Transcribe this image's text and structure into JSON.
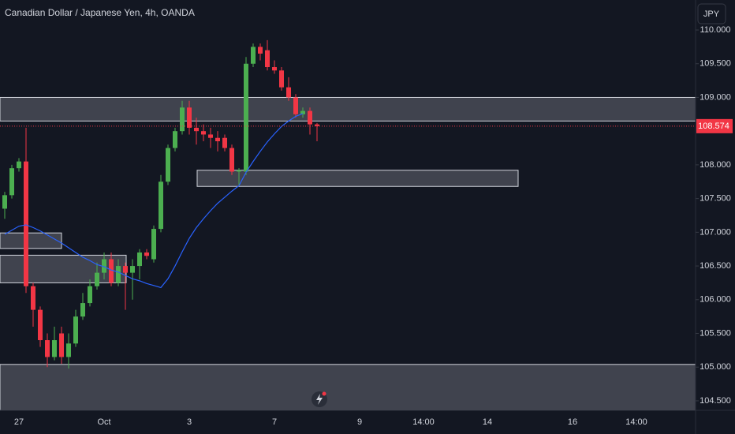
{
  "chart_data": {
    "type": "candlestick",
    "title": "Canadian Dollar / Japanese Yen, 4h, OANDA",
    "currency": "JPY",
    "categories": [
      null,
      null,
      "27",
      null,
      null,
      null,
      null,
      null,
      null,
      null,
      null,
      null,
      null,
      null,
      "Oct",
      null,
      null,
      null,
      null,
      null,
      null,
      null,
      null,
      null,
      null,
      null,
      "3",
      null,
      null,
      null,
      null,
      null,
      null,
      null,
      null,
      null,
      null,
      null,
      "7",
      null,
      null,
      null,
      null,
      null,
      null,
      null,
      null,
      null,
      null,
      null,
      "9",
      null,
      null,
      null,
      null,
      null,
      null,
      null,
      null,
      "14:00",
      null,
      null,
      null,
      null,
      null,
      null,
      null,
      null,
      "14",
      null,
      null,
      null,
      null,
      null,
      null,
      null,
      null,
      null,
      null,
      null,
      "16",
      null,
      null,
      null,
      null,
      null,
      null,
      null,
      null,
      "14:00",
      null,
      null,
      null,
      null,
      null,
      null,
      null
    ],
    "open": [
      107.35,
      107.55,
      107.95,
      108.05,
      106.2,
      105.85,
      105.4,
      105.15,
      105.5,
      105.15,
      105.35,
      105.75,
      105.95,
      106.2,
      106.4,
      106.6,
      106.25,
      106.5,
      106.4,
      106.5,
      106.7,
      106.6,
      107.05,
      107.75,
      108.25,
      108.5,
      108.85,
      108.55,
      108.5,
      108.45,
      108.4,
      108.4,
      108.25,
      107.9,
      107.9,
      109.5,
      109.75,
      109.7,
      109.45,
      109.4,
      109.15,
      109.0,
      108.75,
      108.8,
      108.6,
      null,
      null,
      null,
      null,
      null,
      null,
      null,
      null,
      null,
      null,
      null,
      null,
      null,
      null,
      null,
      null,
      null,
      null,
      null,
      null,
      null,
      null,
      null,
      null,
      null,
      null,
      null,
      null,
      null,
      null,
      null,
      null,
      null,
      null,
      null,
      null,
      null,
      null,
      null,
      null,
      null,
      null,
      null,
      null,
      null,
      null,
      null,
      null,
      null,
      null,
      null,
      null
    ],
    "high": [
      107.6,
      108.0,
      108.1,
      108.55,
      106.25,
      105.9,
      105.5,
      105.6,
      105.6,
      105.5,
      105.85,
      106.1,
      106.3,
      106.55,
      106.7,
      106.7,
      106.6,
      106.55,
      106.6,
      106.75,
      106.75,
      107.1,
      107.85,
      108.3,
      108.55,
      108.95,
      108.95,
      108.7,
      108.6,
      108.55,
      108.5,
      108.45,
      108.3,
      107.95,
      109.6,
      109.8,
      109.8,
      109.85,
      109.55,
      109.45,
      109.3,
      109.05,
      108.85,
      108.85,
      108.62,
      null,
      null,
      null,
      null,
      null,
      null,
      null,
      null,
      null,
      null,
      null,
      null,
      null,
      null,
      null,
      null,
      null,
      null,
      null,
      null,
      null,
      null,
      null,
      null,
      null,
      null,
      null,
      null,
      null,
      null,
      null,
      null,
      null,
      null,
      null,
      null,
      null,
      null,
      null,
      null,
      null,
      null,
      null,
      null,
      null,
      null,
      null,
      null,
      null,
      null,
      null,
      null
    ],
    "low": [
      107.2,
      107.5,
      107.9,
      106.1,
      105.6,
      105.3,
      105.0,
      105.1,
      105.05,
      104.98,
      105.3,
      105.7,
      105.9,
      106.15,
      106.3,
      106.2,
      106.2,
      105.85,
      106.0,
      106.3,
      106.6,
      106.55,
      107.0,
      107.7,
      108.2,
      108.45,
      108.45,
      108.3,
      108.35,
      108.25,
      108.2,
      108.2,
      107.85,
      107.7,
      107.85,
      109.45,
      109.55,
      109.4,
      109.35,
      109.1,
      108.95,
      108.7,
      108.7,
      108.45,
      108.35,
      null,
      null,
      null,
      null,
      null,
      null,
      null,
      null,
      null,
      null,
      null,
      null,
      null,
      null,
      null,
      null,
      null,
      null,
      null,
      null,
      null,
      null,
      null,
      null,
      null,
      null,
      null,
      null,
      null,
      null,
      null,
      null,
      null,
      null,
      null,
      null,
      null,
      null,
      null,
      null,
      null,
      null,
      null,
      null,
      null,
      null,
      null,
      null,
      null,
      null,
      null,
      null
    ],
    "close": [
      107.55,
      107.95,
      108.05,
      106.2,
      105.85,
      105.4,
      105.15,
      105.4,
      105.15,
      105.35,
      105.75,
      105.95,
      106.2,
      106.4,
      106.6,
      106.25,
      106.5,
      106.4,
      106.5,
      106.7,
      106.65,
      107.05,
      107.75,
      108.25,
      108.5,
      108.85,
      108.55,
      108.5,
      108.45,
      108.4,
      108.35,
      108.25,
      107.9,
      107.92,
      109.5,
      109.75,
      109.65,
      109.45,
      109.4,
      109.15,
      109.0,
      108.75,
      108.8,
      108.6,
      108.574,
      null,
      null,
      null,
      null,
      null,
      null,
      null,
      null,
      null,
      null,
      null,
      null,
      null,
      null,
      null,
      null,
      null,
      null,
      null,
      null,
      null,
      null,
      null,
      null,
      null,
      null,
      null,
      null,
      null,
      null,
      null,
      null,
      null,
      null,
      null,
      null,
      null,
      null,
      null,
      null,
      null,
      null,
      null,
      null,
      null,
      null,
      null,
      null,
      null,
      null,
      null,
      null
    ],
    "line": {
      "color": "#2962ff",
      "values": [
        106.97,
        107.03,
        107.09,
        107.11,
        107.07,
        107.02,
        106.96,
        106.9,
        106.84,
        106.77,
        106.7,
        106.63,
        106.58,
        106.52,
        106.49,
        106.44,
        106.41,
        106.36,
        106.31,
        106.28,
        106.24,
        106.21,
        106.18,
        106.31,
        106.5,
        106.71,
        106.91,
        107.07,
        107.2,
        107.32,
        107.43,
        107.52,
        107.61,
        107.69,
        107.89,
        108.05,
        108.2,
        108.34,
        108.46,
        108.57,
        108.65,
        108.72,
        108.76,
        null,
        null,
        null,
        null,
        null,
        null,
        null,
        null,
        null,
        null,
        null,
        null,
        null,
        null,
        null,
        null,
        null,
        null,
        null,
        null,
        null,
        null,
        null,
        null,
        null,
        null,
        null,
        null,
        null,
        null,
        null,
        null,
        null,
        null,
        null,
        null,
        null,
        null,
        null,
        null,
        null,
        null,
        null,
        null,
        null,
        null,
        null,
        null,
        null,
        null,
        null,
        null
      ]
    },
    "up_color": "#4caf50",
    "down_color": "#f23645",
    "last_price": 108.574,
    "zones": [
      {
        "from": 108.65,
        "to": 109.0
      },
      {
        "from": 107.68,
        "to": 107.92
      },
      {
        "from": 106.76,
        "to": 106.99
      },
      {
        "from": 106.25,
        "to": 106.66
      },
      {
        "from": 104.36,
        "to": 105.04
      }
    ],
    "ylim": [
      104.359,
      110.445
    ],
    "yticks": [
      {
        "value": 110,
        "label": "110.000"
      },
      {
        "value": 109.5,
        "label": "109.500"
      },
      {
        "value": 109,
        "label": "109.000"
      },
      {
        "value": 108,
        "label": "108.000"
      },
      {
        "value": 107.5,
        "label": "107.500"
      },
      {
        "value": 107,
        "label": "107.000"
      },
      {
        "value": 106.5,
        "label": "106.500"
      },
      {
        "value": 106,
        "label": "106.000"
      },
      {
        "value": 105.5,
        "label": "105.500"
      },
      {
        "value": 105,
        "label": "105.000"
      },
      {
        "value": 104.5,
        "label": "104.500"
      }
    ]
  }
}
